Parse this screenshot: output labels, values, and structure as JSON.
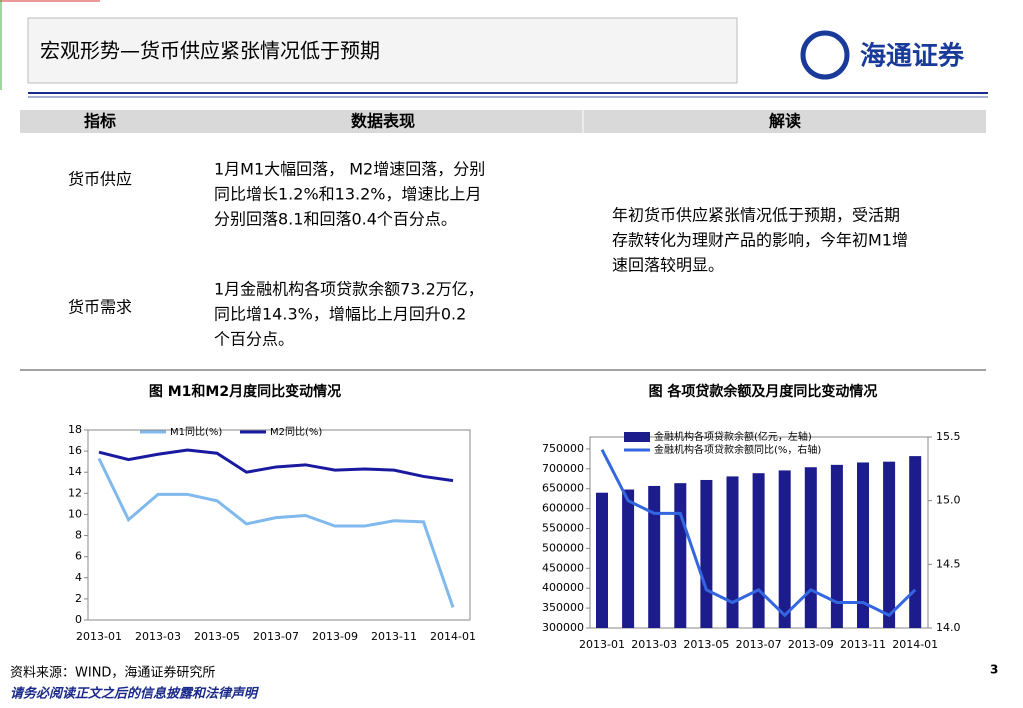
{
  "header": {
    "title": "宏观形势—货币供应紧张情况低于预期",
    "logo": "海通证券"
  },
  "table": {
    "headers": [
      "指标",
      "数据表现",
      "解读"
    ],
    "rows": [
      {
        "label": "货币供应",
        "lines": [
          "1月M1大幅回落， M2增速回落，分别",
          "同比增长1.2%和13.2%，增速比上月",
          "分别回落8.1和回落0.4个百分点。"
        ]
      },
      {
        "label": "货币需求",
        "lines": [
          "1月金融机构各项贷款余额73.2万亿，",
          "同比增14.3%，增幅比上月回升0.2",
          "个百分点。"
        ]
      }
    ],
    "note": [
      "年初货币供应紧张情况低于预期，受活期",
      "存款转化为理财产品的影响，今年初M1增",
      "速回落较明显。"
    ]
  },
  "chart_data": [
    {
      "type": "line",
      "title": "图  M1和M2月度同比变动情况",
      "categories": [
        "2013-01",
        null,
        "2013-03",
        null,
        "2013-05",
        null,
        "2013-07",
        null,
        "2013-09",
        null,
        "2013-11",
        null,
        "2014-01"
      ],
      "series": [
        {
          "name": "M1同比(%)",
          "color": "#80b9ee",
          "values": [
            15.3,
            9.5,
            11.9,
            11.9,
            11.3,
            9.1,
            9.7,
            9.9,
            8.9,
            8.9,
            9.4,
            9.3,
            1.2
          ]
        },
        {
          "name": "M2同比(%)",
          "color": "#1a1aa0",
          "values": [
            15.9,
            15.2,
            15.7,
            16.1,
            15.8,
            14.0,
            14.5,
            14.7,
            14.2,
            14.3,
            14.2,
            13.6,
            13.2
          ]
        }
      ],
      "ylim": [
        0,
        18
      ],
      "yticks": [
        0,
        2,
        4,
        6,
        8,
        10,
        12,
        14,
        16,
        18
      ]
    },
    {
      "type": "bar",
      "title": "图  各项贷款余额及月度同比变动情况",
      "categories": [
        "2013-01",
        null,
        "2013-03",
        null,
        "2013-05",
        null,
        "2013-07",
        null,
        "2013-09",
        null,
        "2013-11",
        null,
        "2014-01"
      ],
      "series": [
        {
          "name": "金融机构各项贷款余额(亿元，左轴)",
          "color": "#1c1c8c",
          "values": [
            640000,
            648000,
            657000,
            664000,
            672000,
            681000,
            689000,
            696000,
            704000,
            710000,
            716000,
            718000,
            732000
          ]
        },
        {
          "name": "金融机构各项贷款余额同比(%，右轴)",
          "color": "#3366e0",
          "axis": "y2",
          "values": [
            15.4,
            15.0,
            14.9,
            14.9,
            14.3,
            14.2,
            14.3,
            14.1,
            14.3,
            14.2,
            14.2,
            14.1,
            14.3
          ]
        }
      ],
      "ylim": [
        300000,
        780000
      ],
      "yticks": [
        300000,
        350000,
        400000,
        450000,
        500000,
        550000,
        600000,
        650000,
        700000,
        750000
      ],
      "y2lim": [
        14.0,
        15.5
      ],
      "y2ticks": [
        {
          "value": 14,
          "label": "14.0"
        },
        14.5,
        {
          "value": 15,
          "label": "15.0"
        },
        15.5
      ]
    }
  ],
  "footer": {
    "source": "资料来源：WIND，海通证券研究所",
    "disclaimer": "请务必阅读正文之后的信息披露和法律声明",
    "page": "3"
  }
}
